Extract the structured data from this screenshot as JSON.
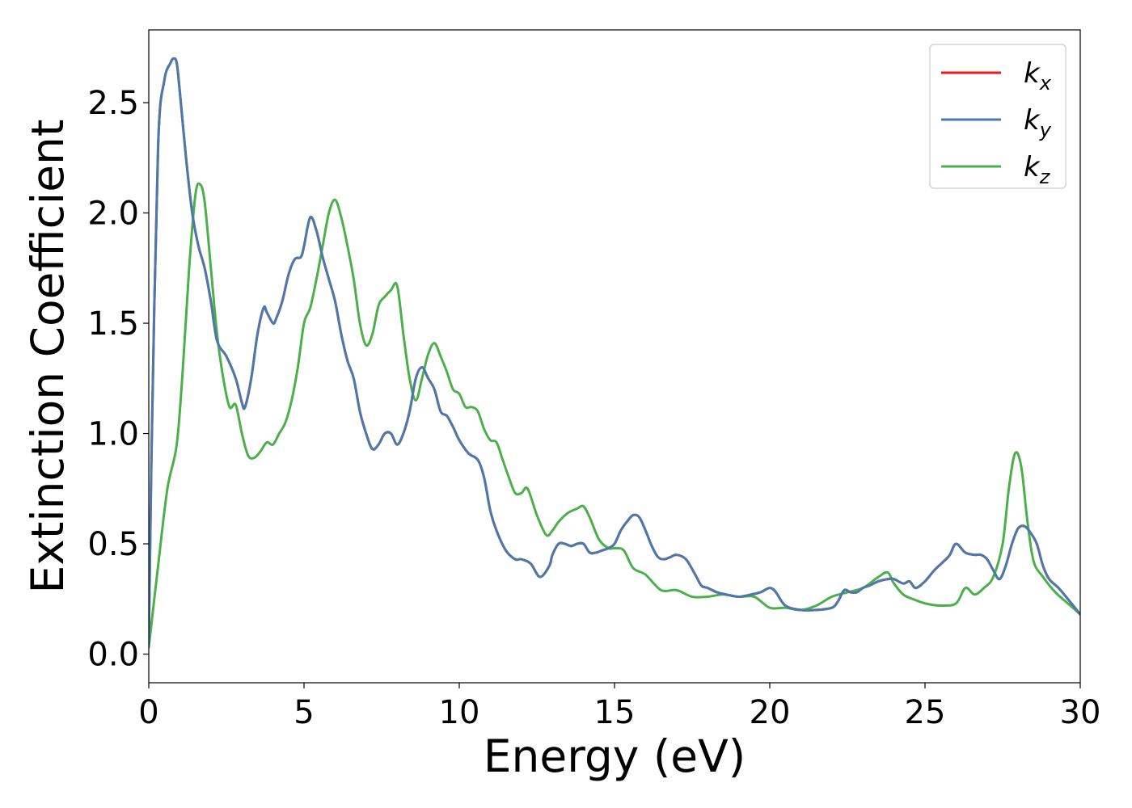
{
  "chart_data": {
    "type": "line",
    "title": "",
    "xlabel": "Energy (eV)",
    "ylabel": "Extinction Coefficient",
    "xlim": [
      0,
      30
    ],
    "ylim": [
      -0.13,
      2.83
    ],
    "xticks": [
      0,
      5,
      10,
      15,
      20,
      25,
      30
    ],
    "xtick_labels": [
      "0",
      "5",
      "10",
      "15",
      "20",
      "25",
      "30"
    ],
    "yticks": [
      0.0,
      0.5,
      1.0,
      1.5,
      2.0,
      2.5
    ],
    "ytick_labels": [
      "0.0",
      "0.5",
      "1.0",
      "1.5",
      "2.0",
      "2.5"
    ],
    "grid": false,
    "legend_position": "top-right",
    "series": [
      {
        "name": "k_x",
        "label_base": "k",
        "label_sub": "x",
        "color": "#e41a1c",
        "x": [
          0,
          0.1,
          0.3,
          0.5,
          0.7,
          0.8,
          0.9,
          1.0,
          1.2,
          1.4,
          1.6,
          1.8,
          2.0,
          2.2,
          2.5,
          2.8,
          3.0,
          3.1,
          3.3,
          3.5,
          3.7,
          3.8,
          4.0,
          4.1,
          4.3,
          4.5,
          4.7,
          4.9,
          5.0,
          5.2,
          5.4,
          5.6,
          5.8,
          6.0,
          6.2,
          6.4,
          6.6,
          6.8,
          7.0,
          7.2,
          7.4,
          7.6,
          7.8,
          8.0,
          8.2,
          8.4,
          8.6,
          8.8,
          9.0,
          9.2,
          9.4,
          9.6,
          9.8,
          10.0,
          10.3,
          10.6,
          10.8,
          11.0,
          11.2,
          11.5,
          11.8,
          12.0,
          12.3,
          12.6,
          12.9,
          13.0,
          13.2,
          13.4,
          13.6,
          13.8,
          14.0,
          14.2,
          14.4,
          14.6,
          14.8,
          15.0,
          15.2,
          15.4,
          15.6,
          15.8,
          16.0,
          16.2,
          16.4,
          16.6,
          16.8,
          17.0,
          17.3,
          17.6,
          17.8,
          18.0,
          18.3,
          18.6,
          19.0,
          19.4,
          19.7,
          20.0,
          20.2,
          20.5,
          21.0,
          21.5,
          22.0,
          22.2,
          22.4,
          22.6,
          22.8,
          23.0,
          23.2,
          23.5,
          23.8,
          24.0,
          24.3,
          24.5,
          24.7,
          25.0,
          25.3,
          25.6,
          25.8,
          26.0,
          26.3,
          26.6,
          26.8,
          27.0,
          27.2,
          27.4,
          27.6,
          27.8,
          28.0,
          28.2,
          28.4,
          28.6,
          28.8,
          29.0,
          29.3,
          29.6,
          30.0
        ],
        "y": [
          0.05,
          1.0,
          2.3,
          2.6,
          2.68,
          2.7,
          2.68,
          2.55,
          2.25,
          2.0,
          1.85,
          1.75,
          1.6,
          1.42,
          1.35,
          1.25,
          1.14,
          1.12,
          1.25,
          1.45,
          1.57,
          1.55,
          1.5,
          1.52,
          1.6,
          1.72,
          1.79,
          1.8,
          1.85,
          1.98,
          1.92,
          1.8,
          1.7,
          1.6,
          1.45,
          1.33,
          1.25,
          1.1,
          1.0,
          0.93,
          0.95,
          1.0,
          1.0,
          0.95,
          1.0,
          1.1,
          1.25,
          1.3,
          1.25,
          1.2,
          1.1,
          1.08,
          1.03,
          0.97,
          0.91,
          0.88,
          0.8,
          0.65,
          0.56,
          0.47,
          0.43,
          0.43,
          0.41,
          0.35,
          0.4,
          0.45,
          0.5,
          0.5,
          0.49,
          0.5,
          0.5,
          0.46,
          0.46,
          0.47,
          0.48,
          0.5,
          0.56,
          0.6,
          0.63,
          0.62,
          0.56,
          0.49,
          0.44,
          0.43,
          0.44,
          0.45,
          0.43,
          0.36,
          0.31,
          0.3,
          0.28,
          0.27,
          0.26,
          0.27,
          0.28,
          0.3,
          0.28,
          0.22,
          0.2,
          0.2,
          0.21,
          0.24,
          0.29,
          0.28,
          0.28,
          0.3,
          0.31,
          0.33,
          0.34,
          0.34,
          0.32,
          0.33,
          0.3,
          0.33,
          0.38,
          0.42,
          0.45,
          0.5,
          0.46,
          0.45,
          0.45,
          0.43,
          0.38,
          0.34,
          0.4,
          0.5,
          0.57,
          0.58,
          0.55,
          0.5,
          0.4,
          0.34,
          0.3,
          0.25,
          0.18
        ]
      },
      {
        "name": "k_y",
        "label_base": "k",
        "label_sub": "y",
        "color": "#4a7aad",
        "x": [
          0,
          0.1,
          0.3,
          0.5,
          0.7,
          0.8,
          0.9,
          1.0,
          1.2,
          1.4,
          1.6,
          1.8,
          2.0,
          2.2,
          2.5,
          2.8,
          3.0,
          3.1,
          3.3,
          3.5,
          3.7,
          3.8,
          4.0,
          4.1,
          4.3,
          4.5,
          4.7,
          4.9,
          5.0,
          5.2,
          5.4,
          5.6,
          5.8,
          6.0,
          6.2,
          6.4,
          6.6,
          6.8,
          7.0,
          7.2,
          7.4,
          7.6,
          7.8,
          8.0,
          8.2,
          8.4,
          8.6,
          8.8,
          9.0,
          9.2,
          9.4,
          9.6,
          9.8,
          10.0,
          10.3,
          10.6,
          10.8,
          11.0,
          11.2,
          11.5,
          11.8,
          12.0,
          12.3,
          12.6,
          12.9,
          13.0,
          13.2,
          13.4,
          13.6,
          13.8,
          14.0,
          14.2,
          14.4,
          14.6,
          14.8,
          15.0,
          15.2,
          15.4,
          15.6,
          15.8,
          16.0,
          16.2,
          16.4,
          16.6,
          16.8,
          17.0,
          17.3,
          17.6,
          17.8,
          18.0,
          18.3,
          18.6,
          19.0,
          19.4,
          19.7,
          20.0,
          20.2,
          20.5,
          21.0,
          21.5,
          22.0,
          22.2,
          22.4,
          22.6,
          22.8,
          23.0,
          23.2,
          23.5,
          23.8,
          24.0,
          24.3,
          24.5,
          24.7,
          25.0,
          25.3,
          25.6,
          25.8,
          26.0,
          26.3,
          26.6,
          26.8,
          27.0,
          27.2,
          27.4,
          27.6,
          27.8,
          28.0,
          28.2,
          28.4,
          28.6,
          28.8,
          29.0,
          29.3,
          29.6,
          30.0
        ],
        "y": [
          0.05,
          1.0,
          2.3,
          2.6,
          2.68,
          2.7,
          2.68,
          2.55,
          2.25,
          2.0,
          1.85,
          1.75,
          1.6,
          1.42,
          1.35,
          1.25,
          1.14,
          1.12,
          1.25,
          1.45,
          1.57,
          1.55,
          1.5,
          1.52,
          1.6,
          1.72,
          1.79,
          1.8,
          1.85,
          1.98,
          1.92,
          1.8,
          1.7,
          1.6,
          1.45,
          1.33,
          1.25,
          1.1,
          1.0,
          0.93,
          0.95,
          1.0,
          1.0,
          0.95,
          1.0,
          1.1,
          1.25,
          1.3,
          1.25,
          1.2,
          1.1,
          1.08,
          1.03,
          0.97,
          0.91,
          0.88,
          0.8,
          0.65,
          0.56,
          0.47,
          0.43,
          0.43,
          0.41,
          0.35,
          0.4,
          0.45,
          0.5,
          0.5,
          0.49,
          0.5,
          0.5,
          0.46,
          0.46,
          0.47,
          0.48,
          0.5,
          0.56,
          0.6,
          0.63,
          0.62,
          0.56,
          0.49,
          0.44,
          0.43,
          0.44,
          0.45,
          0.43,
          0.36,
          0.31,
          0.3,
          0.28,
          0.27,
          0.26,
          0.27,
          0.28,
          0.3,
          0.28,
          0.22,
          0.2,
          0.2,
          0.21,
          0.24,
          0.29,
          0.28,
          0.28,
          0.3,
          0.31,
          0.33,
          0.34,
          0.34,
          0.32,
          0.33,
          0.3,
          0.33,
          0.38,
          0.42,
          0.45,
          0.5,
          0.46,
          0.45,
          0.45,
          0.43,
          0.38,
          0.34,
          0.4,
          0.5,
          0.57,
          0.58,
          0.55,
          0.5,
          0.4,
          0.34,
          0.3,
          0.25,
          0.18
        ]
      },
      {
        "name": "k_z",
        "label_base": "k",
        "label_sub": "z",
        "color": "#4daf4a",
        "x": [
          0,
          0.3,
          0.6,
          0.9,
          1.1,
          1.3,
          1.5,
          1.65,
          1.8,
          2.0,
          2.2,
          2.4,
          2.6,
          2.8,
          3.0,
          3.2,
          3.4,
          3.6,
          3.8,
          4.0,
          4.2,
          4.4,
          4.6,
          4.8,
          5.0,
          5.2,
          5.4,
          5.6,
          5.8,
          6.0,
          6.2,
          6.4,
          6.6,
          6.8,
          7.0,
          7.2,
          7.4,
          7.6,
          7.8,
          8.0,
          8.2,
          8.4,
          8.6,
          8.8,
          9.0,
          9.2,
          9.4,
          9.6,
          9.8,
          10.0,
          10.2,
          10.4,
          10.6,
          10.8,
          11.0,
          11.2,
          11.4,
          11.6,
          11.8,
          12.0,
          12.2,
          12.5,
          12.8,
          13.0,
          13.2,
          13.5,
          13.8,
          14.0,
          14.2,
          14.5,
          14.8,
          15.0,
          15.3,
          15.6,
          16.0,
          16.5,
          17.0,
          17.5,
          18.0,
          18.5,
          19.0,
          19.5,
          20.0,
          20.5,
          21.0,
          21.5,
          22.0,
          22.5,
          23.0,
          23.5,
          23.8,
          24.0,
          24.3,
          24.6,
          25.0,
          25.5,
          26.0,
          26.3,
          26.6,
          26.9,
          27.2,
          27.5,
          27.7,
          27.9,
          28.1,
          28.3,
          28.5,
          28.8,
          29.2,
          29.6,
          30.0
        ],
        "y": [
          0.03,
          0.4,
          0.75,
          0.95,
          1.3,
          1.75,
          2.08,
          2.13,
          2.05,
          1.75,
          1.45,
          1.25,
          1.12,
          1.13,
          1.0,
          0.9,
          0.89,
          0.92,
          0.96,
          0.95,
          1.0,
          1.05,
          1.15,
          1.3,
          1.5,
          1.57,
          1.7,
          1.85,
          2.0,
          2.06,
          1.98,
          1.85,
          1.7,
          1.5,
          1.4,
          1.45,
          1.58,
          1.62,
          1.65,
          1.67,
          1.45,
          1.25,
          1.15,
          1.25,
          1.36,
          1.41,
          1.35,
          1.28,
          1.2,
          1.18,
          1.12,
          1.12,
          1.1,
          1.02,
          0.97,
          0.96,
          0.88,
          0.8,
          0.73,
          0.73,
          0.75,
          0.63,
          0.54,
          0.56,
          0.6,
          0.64,
          0.66,
          0.67,
          0.62,
          0.52,
          0.48,
          0.48,
          0.47,
          0.39,
          0.36,
          0.29,
          0.29,
          0.26,
          0.26,
          0.27,
          0.26,
          0.26,
          0.21,
          0.21,
          0.2,
          0.22,
          0.26,
          0.28,
          0.3,
          0.35,
          0.37,
          0.32,
          0.27,
          0.25,
          0.23,
          0.22,
          0.23,
          0.3,
          0.27,
          0.3,
          0.35,
          0.5,
          0.75,
          0.91,
          0.85,
          0.6,
          0.42,
          0.35,
          0.28,
          0.23,
          0.18
        ]
      }
    ]
  }
}
